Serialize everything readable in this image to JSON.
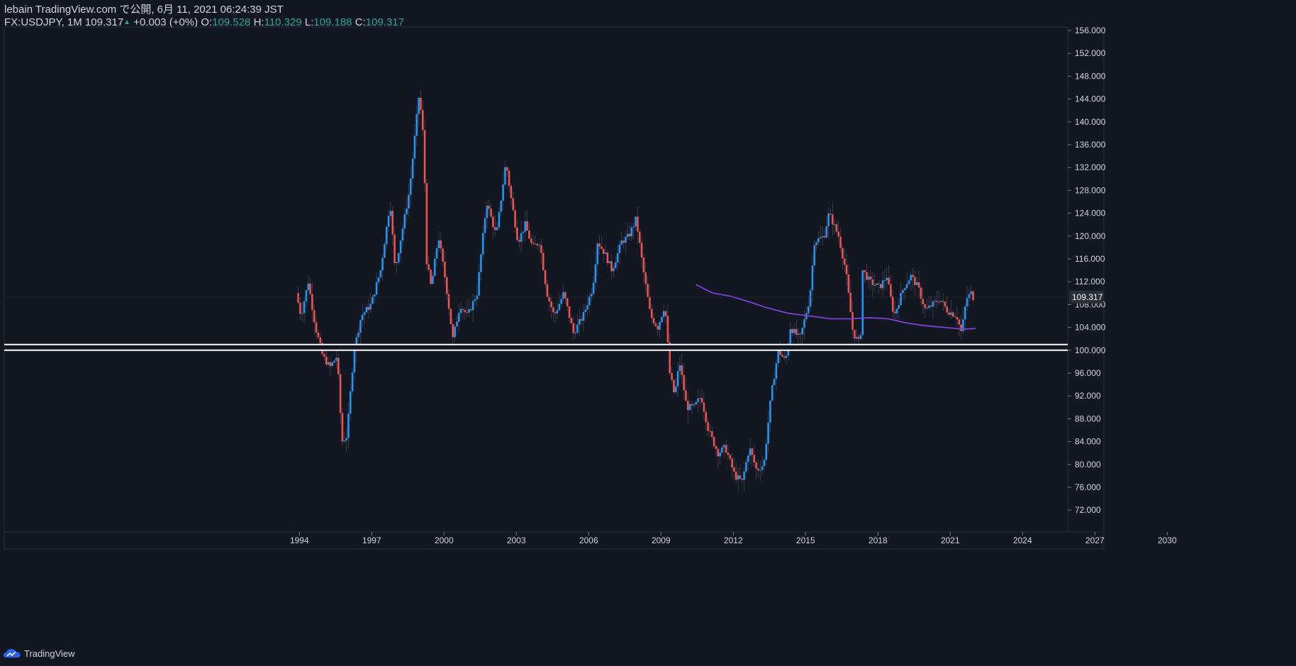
{
  "header": {
    "publish_line": "lebain TradingView.com で公開, 6月 11, 2021 06:24:39 JST",
    "symbol_interval": "FX:USDJPY, 1M",
    "last_price": "109.317",
    "change_arrow": "▲",
    "change": "+0.003 (+0%)",
    "o_label": "O:",
    "o_value": "109.528",
    "h_label": "H:",
    "h_value": "110.329",
    "l_label": "L:",
    "l_value": "109.188",
    "c_label": "C:",
    "c_value": "109.317"
  },
  "footer": {
    "brand": "TradingView"
  },
  "colors": {
    "background": "#131722",
    "up": "#2196f3",
    "down": "#ef5350",
    "ma": "#7e3fd6",
    "grid": "#1e222d",
    "text": "#d1d4dc",
    "ohlc_value": "#26a69a"
  },
  "chart_data": {
    "type": "candlestick",
    "symbol": "FX:USDJPY",
    "interval": "1M",
    "ylim": [
      68,
      157
    ],
    "y_ticks": [
      "72.000",
      "76.000",
      "80.000",
      "84.000",
      "88.000",
      "92.000",
      "96.000",
      "100.000",
      "104.000",
      "108.000",
      "112.000",
      "116.000",
      "120.000",
      "124.000",
      "128.000",
      "132.000",
      "136.000",
      "140.000",
      "144.000",
      "148.000",
      "152.000",
      "156.000"
    ],
    "x_ticks": [
      "1994",
      "1997",
      "2000",
      "2003",
      "2006",
      "2009",
      "2012",
      "2015",
      "2018",
      "2021",
      "2024",
      "2027",
      "2030"
    ],
    "last_price_label": "109.317",
    "price_path": [
      [
        1993.4,
        110
      ],
      [
        1993.6,
        106
      ],
      [
        1993.9,
        112
      ],
      [
        1994.2,
        104
      ],
      [
        1994.5,
        99
      ],
      [
        1994.8,
        97
      ],
      [
        1995.1,
        99
      ],
      [
        1995.3,
        84
      ],
      [
        1995.5,
        85
      ],
      [
        1995.8,
        100
      ],
      [
        1996.1,
        106
      ],
      [
        1996.5,
        108
      ],
      [
        1996.9,
        114
      ],
      [
        1997.3,
        126
      ],
      [
        1997.5,
        114
      ],
      [
        1997.8,
        121
      ],
      [
        1998.1,
        128
      ],
      [
        1998.5,
        145
      ],
      [
        1998.7,
        136
      ],
      [
        1998.8,
        116
      ],
      [
        1999.0,
        111
      ],
      [
        1999.3,
        120
      ],
      [
        1999.6,
        112
      ],
      [
        1999.9,
        102
      ],
      [
        2000.2,
        108
      ],
      [
        2000.5,
        106
      ],
      [
        2000.9,
        110
      ],
      [
        2001.3,
        126
      ],
      [
        2001.7,
        120
      ],
      [
        2002.1,
        133
      ],
      [
        2002.3,
        127
      ],
      [
        2002.6,
        119
      ],
      [
        2002.9,
        122
      ],
      [
        2003.2,
        118
      ],
      [
        2003.5,
        119
      ],
      [
        2003.8,
        110
      ],
      [
        2004.1,
        106
      ],
      [
        2004.5,
        110
      ],
      [
        2004.9,
        103
      ],
      [
        2005.3,
        106
      ],
      [
        2005.7,
        111
      ],
      [
        2005.9,
        119
      ],
      [
        2006.2,
        117
      ],
      [
        2006.5,
        114
      ],
      [
        2006.9,
        119
      ],
      [
        2007.2,
        120
      ],
      [
        2007.5,
        123
      ],
      [
        2007.8,
        114
      ],
      [
        2008.1,
        106
      ],
      [
        2008.4,
        104
      ],
      [
        2008.7,
        108
      ],
      [
        2008.9,
        96
      ],
      [
        2009.1,
        92
      ],
      [
        2009.3,
        98
      ],
      [
        2009.6,
        90
      ],
      [
        2009.9,
        90
      ],
      [
        2010.2,
        92
      ],
      [
        2010.5,
        86
      ],
      [
        2010.9,
        82
      ],
      [
        2011.2,
        83
      ],
      [
        2011.6,
        78
      ],
      [
        2011.9,
        77
      ],
      [
        2012.2,
        83
      ],
      [
        2012.5,
        79
      ],
      [
        2012.8,
        80
      ],
      [
        2013.1,
        92
      ],
      [
        2013.4,
        100
      ],
      [
        2013.7,
        98
      ],
      [
        2013.9,
        104
      ],
      [
        2014.3,
        102
      ],
      [
        2014.7,
        109
      ],
      [
        2014.9,
        119
      ],
      [
        2015.3,
        120
      ],
      [
        2015.5,
        124
      ],
      [
        2015.9,
        120
      ],
      [
        2016.2,
        114
      ],
      [
        2016.5,
        103
      ],
      [
        2016.8,
        101
      ],
      [
        2016.9,
        114
      ],
      [
        2017.2,
        112
      ],
      [
        2017.6,
        111
      ],
      [
        2017.9,
        113
      ],
      [
        2018.2,
        106
      ],
      [
        2018.6,
        111
      ],
      [
        2018.9,
        113
      ],
      [
        2019.2,
        111
      ],
      [
        2019.5,
        107
      ],
      [
        2019.8,
        108
      ],
      [
        2020.1,
        109
      ],
      [
        2020.4,
        107
      ],
      [
        2020.8,
        106
      ],
      [
        2021.0,
        103
      ],
      [
        2021.2,
        109
      ],
      [
        2021.4,
        110
      ],
      [
        2021.45,
        109.3
      ]
    ],
    "moving_average": [
      [
        2009.9,
        111.5
      ],
      [
        2010.6,
        110
      ],
      [
        2011.3,
        109.5
      ],
      [
        2012.1,
        108.5
      ],
      [
        2012.8,
        107.5
      ],
      [
        2013.7,
        106.5
      ],
      [
        2014.6,
        106
      ],
      [
        2015.5,
        105.5
      ],
      [
        2016.3,
        105.5
      ],
      [
        2017.1,
        105.7
      ],
      [
        2017.9,
        105.5
      ],
      [
        2018.6,
        104.8
      ],
      [
        2019.4,
        104.3
      ],
      [
        2020.2,
        104
      ],
      [
        2021.0,
        103.7
      ],
      [
        2021.5,
        103.8
      ]
    ],
    "horizontal_levels": [
      101,
      100
    ]
  }
}
